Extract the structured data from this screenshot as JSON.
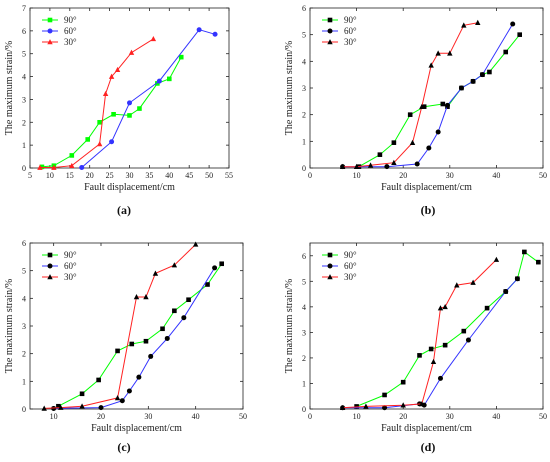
{
  "chart_data": [
    {
      "panel_label": "(a)",
      "type": "line",
      "xlabel": "Fault displacement/cm",
      "ylabel": "The maximum strain/%",
      "xlim": [
        5,
        55
      ],
      "ylim": [
        0,
        7
      ],
      "xticks": [
        5,
        10,
        15,
        20,
        25,
        30,
        35,
        40,
        45,
        50,
        55
      ],
      "yticks": [
        0,
        1,
        2,
        3,
        4,
        5,
        6,
        7
      ],
      "legend": "top-left",
      "series": [
        {
          "name": "90°",
          "color": "#00ff00",
          "marker": "square",
          "x": [
            8,
            11,
            15.5,
            19.5,
            22.5,
            26,
            30,
            32.5,
            37,
            40,
            43
          ],
          "y": [
            0.05,
            0.1,
            0.55,
            1.25,
            2.0,
            2.35,
            2.3,
            2.6,
            3.7,
            3.9,
            4.85
          ]
        },
        {
          "name": "60°",
          "color": "#3333ff",
          "marker": "circle",
          "x": [
            18,
            25.5,
            30,
            37.5,
            47.5,
            51.5
          ],
          "y": [
            0.02,
            1.15,
            2.85,
            3.8,
            6.05,
            5.85
          ]
        },
        {
          "name": "30°",
          "color": "#ff2222",
          "marker": "triangle",
          "x": [
            7.5,
            11,
            15.5,
            22.5,
            24,
            25.5,
            27,
            30.5,
            36
          ],
          "y": [
            0.02,
            0.02,
            0.1,
            1.05,
            3.25,
            4.0,
            4.3,
            5.05,
            5.65
          ]
        }
      ]
    },
    {
      "panel_label": "(b)",
      "type": "line",
      "xlabel": "Fault displacement/cm",
      "ylabel": "The maximum strain/%",
      "xlim": [
        0,
        50
      ],
      "ylim": [
        0,
        6
      ],
      "xticks": [
        0,
        10,
        20,
        30,
        40,
        50
      ],
      "yticks": [
        0,
        1,
        2,
        3,
        4,
        5,
        6
      ],
      "legend": "top-left",
      "series": [
        {
          "name": "90°",
          "color": "#00ff00",
          "marker": "square",
          "x": [
            10.5,
            15,
            18,
            21.5,
            24.5,
            28.5,
            29.5,
            32.5,
            35,
            37,
            38.5,
            42,
            45
          ],
          "y": [
            0.05,
            0.5,
            0.95,
            2.0,
            2.3,
            2.4,
            2.3,
            3.0,
            3.25,
            3.5,
            3.6,
            4.35,
            5.0
          ]
        },
        {
          "name": "60°",
          "color": "#3333ff",
          "marker": "circle",
          "x": [
            7,
            16.5,
            23,
            25.5,
            27.5,
            29.5,
            32.5,
            35,
            37,
            43.5
          ],
          "y": [
            0.05,
            0.05,
            0.15,
            0.75,
            1.35,
            2.35,
            3.0,
            3.25,
            3.5,
            5.4
          ]
        },
        {
          "name": "30°",
          "color": "#ff2222",
          "marker": "triangle",
          "x": [
            7,
            10,
            13,
            18,
            22,
            24,
            26,
            27.5,
            30,
            33,
            36
          ],
          "y": [
            0.05,
            0.05,
            0.1,
            0.2,
            0.95,
            2.3,
            3.85,
            4.3,
            4.3,
            5.35,
            5.45
          ]
        }
      ]
    },
    {
      "panel_label": "(c)",
      "type": "line",
      "xlabel": "Fault displacement/cm",
      "ylabel": "The maximum strain/%",
      "xlim": [
        5,
        50
      ],
      "ylim": [
        0,
        6
      ],
      "xticks": [
        10,
        20,
        30,
        40,
        50
      ],
      "yticks": [
        0,
        1,
        2,
        3,
        4,
        5,
        6
      ],
      "legend": "top-left",
      "series": [
        {
          "name": "90°",
          "color": "#00ff00",
          "marker": "square",
          "x": [
            11,
            16,
            19.5,
            23.5,
            26.5,
            29.5,
            33,
            35.5,
            38.5,
            42.5,
            45.5
          ],
          "y": [
            0.1,
            0.55,
            1.05,
            2.1,
            2.35,
            2.45,
            2.9,
            3.55,
            3.95,
            4.5,
            5.25
          ]
        },
        {
          "name": "60°",
          "color": "#3333ff",
          "marker": "circle",
          "x": [
            10,
            20,
            24.5,
            26,
            28,
            30.5,
            34,
            37.5,
            44
          ],
          "y": [
            0.02,
            0.05,
            0.3,
            0.65,
            1.15,
            1.9,
            2.55,
            3.3,
            5.1
          ]
        },
        {
          "name": "30°",
          "color": "#ff2222",
          "marker": "triangle",
          "x": [
            8,
            11.5,
            16,
            23.5,
            27.5,
            29.5,
            31.5,
            35.5,
            40
          ],
          "y": [
            0.02,
            0.05,
            0.1,
            0.4,
            4.05,
            4.05,
            4.9,
            5.2,
            5.95
          ]
        }
      ]
    },
    {
      "panel_label": "(d)",
      "type": "line",
      "xlabel": "Fault displacement/cm",
      "ylabel": "The maximum strain/%",
      "xlim": [
        0,
        50
      ],
      "ylim": [
        0,
        6.5
      ],
      "xticks": [
        0,
        10,
        20,
        30,
        40,
        50
      ],
      "yticks": [
        0,
        1,
        2,
        3,
        4,
        5,
        6
      ],
      "legend": "top-left",
      "series": [
        {
          "name": "90°",
          "color": "#00ff00",
          "marker": "square",
          "x": [
            10,
            16,
            20,
            23.5,
            26,
            29,
            33,
            38,
            42,
            44.5,
            46,
            49
          ],
          "y": [
            0.1,
            0.55,
            1.05,
            2.1,
            2.35,
            2.5,
            3.05,
            3.95,
            4.6,
            5.1,
            6.15,
            5.75
          ]
        },
        {
          "name": "60°",
          "color": "#3333ff",
          "marker": "circle",
          "x": [
            7,
            16,
            23.5,
            24.5,
            28,
            34,
            42,
            44.5
          ],
          "y": [
            0.05,
            0.05,
            0.2,
            0.15,
            1.2,
            2.7,
            4.6,
            5.1
          ]
        },
        {
          "name": "30°",
          "color": "#ff2222",
          "marker": "triangle",
          "x": [
            7,
            12,
            20,
            24,
            26.5,
            28,
            29,
            31.5,
            35,
            40
          ],
          "y": [
            0.05,
            0.1,
            0.15,
            0.2,
            1.85,
            3.95,
            4.0,
            4.85,
            4.95,
            5.85
          ]
        }
      ]
    }
  ]
}
